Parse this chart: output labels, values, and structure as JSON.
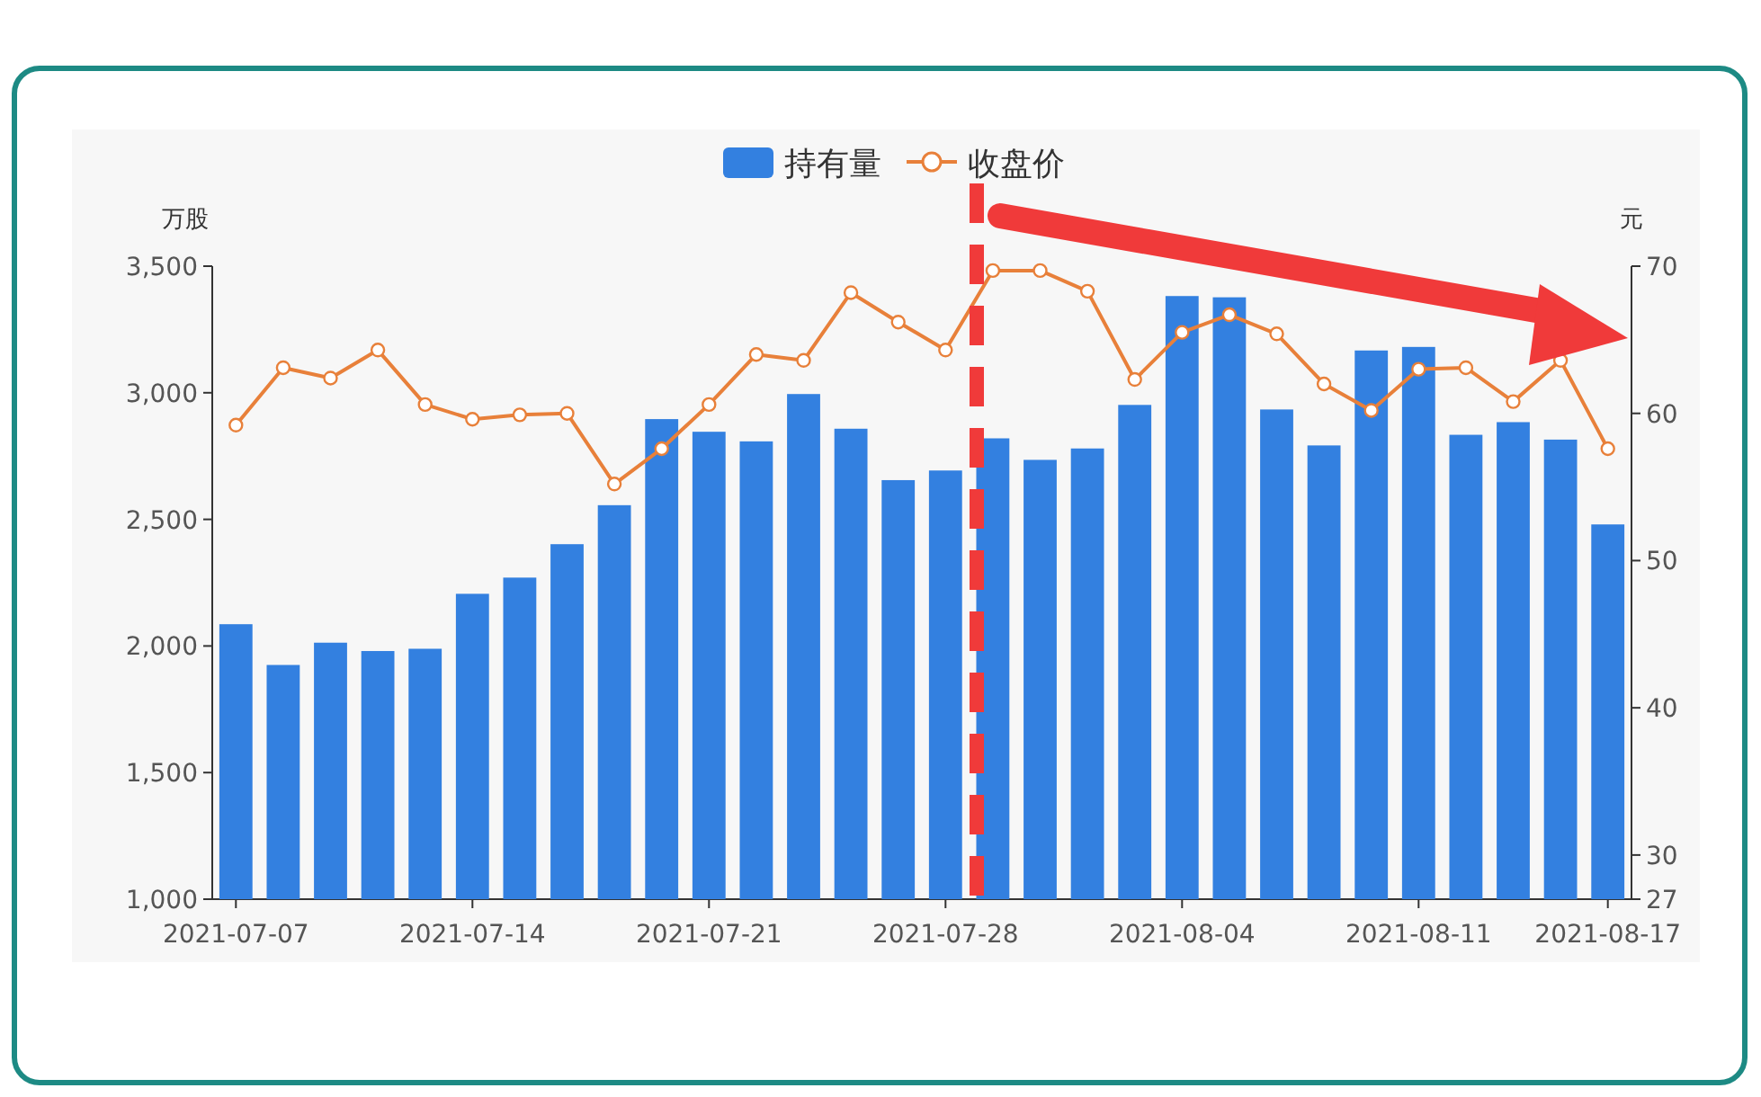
{
  "chart_data": {
    "type": "bar",
    "categories": [
      "2021-07-07",
      null,
      null,
      null,
      null,
      "2021-07-14",
      null,
      null,
      null,
      null,
      "2021-07-21",
      null,
      null,
      null,
      null,
      "2021-07-28",
      null,
      null,
      null,
      null,
      "2021-08-04",
      null,
      null,
      null,
      null,
      "2021-08-11",
      null,
      null,
      null,
      "2021-08-17"
    ],
    "series": [
      {
        "name": "持有量",
        "color": "#3380e0",
        "values": [
          2086,
          1925,
          2013,
          1980,
          1989,
          2206,
          2270,
          2402,
          2556,
          2896,
          2846,
          2808,
          2995,
          2858,
          2655,
          2693,
          2820,
          2735,
          2780,
          2952,
          3382,
          3377,
          2934,
          2792,
          3167,
          3181,
          2834,
          2884,
          2815,
          2480
        ]
      },
      {
        "name": "收盘价",
        "type": "line",
        "axis": "y2",
        "color": "#e8803a",
        "marker": "circle",
        "values": [
          59.2,
          63.1,
          62.4,
          64.3,
          60.6,
          59.6,
          59.9,
          60.0,
          55.2,
          57.6,
          60.6,
          64.0,
          63.6,
          68.2,
          66.2,
          64.3,
          69.7,
          69.7,
          68.3,
          62.3,
          65.5,
          66.7,
          65.4,
          62.0,
          60.2,
          63.0,
          63.1,
          60.8,
          63.6,
          57.6
        ]
      }
    ],
    "ylabel": "万股",
    "y2label": "元",
    "ylim": [
      1000,
      3500
    ],
    "yticks": [
      {
        "value": 1000,
        "label": "1,000"
      },
      {
        "value": 1500,
        "label": "1,500"
      },
      {
        "value": 2000,
        "label": "2,000"
      },
      {
        "value": 2500,
        "label": "2,500"
      },
      {
        "value": 3000,
        "label": "3,000"
      },
      {
        "value": 3500,
        "label": "3,500"
      }
    ],
    "y2lim": [
      27,
      70
    ],
    "y2ticks": [
      27,
      30,
      40,
      50,
      60,
      70
    ],
    "legend": "top",
    "grid": false
  }
}
